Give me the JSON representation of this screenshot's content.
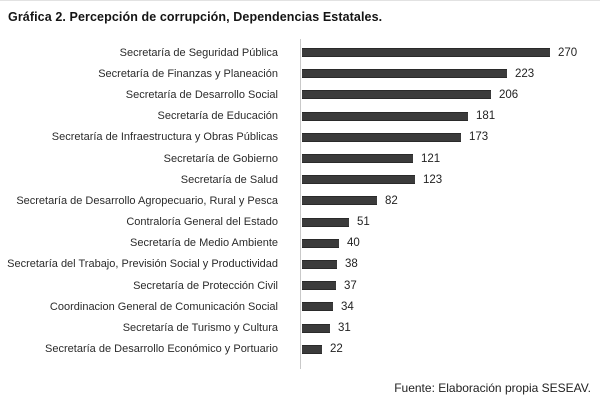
{
  "title": "Gráfica 2. Percepción de corrupción, Dependencias Estatales.",
  "source": "Fuente: Elaboración propia SESEAV.",
  "colors": {
    "bar": "#3b3b3b",
    "bar_edge": "#2a2a2a",
    "axis": "#c9c9c9",
    "text": "#2b2b2b",
    "background": "#ffffff"
  },
  "chart_data": {
    "type": "bar",
    "orientation": "horizontal",
    "title": "Gráfica 2. Percepción de corrupción, Dependencias Estatales.",
    "categories": [
      "Secretaría de Seguridad Pública",
      "Secretaría de Finanzas y Planeación",
      "Secretaría de Desarrollo Social",
      "Secretaría de Educación",
      "Secretaría de Infraestructura y Obras Públicas",
      "Secretaría de Gobierno",
      "Secretaría de Salud",
      "Secretaría de Desarrollo Agropecuario, Rural y Pesca",
      "Contraloría General del Estado",
      "Secretaría de Medio Ambiente",
      "Secretaría del Trabajo, Previsión Social y Productividad",
      "Secretaría de Protección Civil",
      "Coordinacion General de Comunicación Social",
      "Secretaría de Turismo y Cultura",
      "Secretaría de Desarrollo Económico y Portuario"
    ],
    "values": [
      270,
      223,
      206,
      181,
      173,
      121,
      123,
      82,
      51,
      40,
      38,
      37,
      34,
      31,
      22
    ],
    "xlabel": "",
    "ylabel": "",
    "xlim": [
      0,
      292
    ],
    "grid": false,
    "value_labels": true,
    "legend": false,
    "source": "Fuente: Elaboración propia SESEAV."
  }
}
